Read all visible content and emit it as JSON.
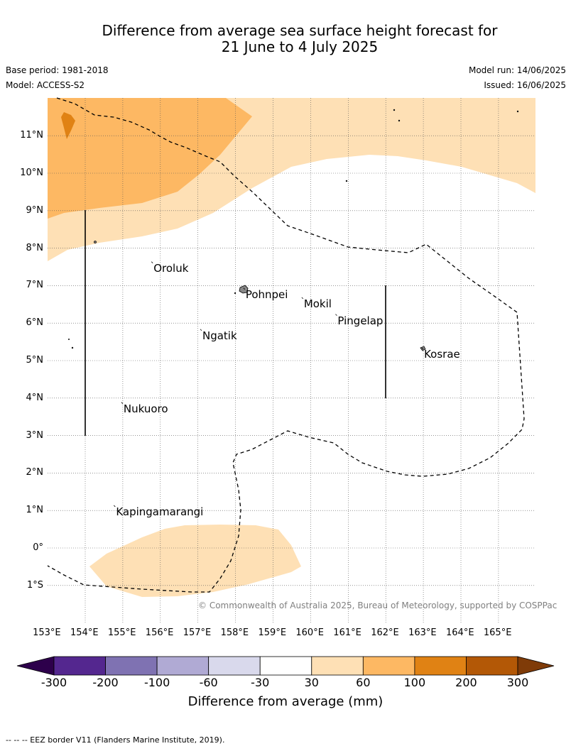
{
  "title_line1": "Difference from average sea surface height forecast for",
  "title_line2": "21 June to 4 July 2025",
  "base_period": "Base period: 1981-2018",
  "model": "Model: ACCESS-S2",
  "model_run": "Model run: 14/06/2025",
  "issued": "Issued: 16/06/2025",
  "copyright": "© Commonwealth of Australia 2025, Bureau of Meteorology, supported by COSPPac",
  "lat_labels": [
    "11°N",
    "10°N",
    "9°N",
    "8°N",
    "7°N",
    "6°N",
    "5°N",
    "4°N",
    "3°N",
    "2°N",
    "1°N",
    "0°",
    "1°S"
  ],
  "lon_labels": [
    "153°E",
    "154°E",
    "155°E",
    "156°E",
    "157°E",
    "158°E",
    "159°E",
    "160°E",
    "161°E",
    "162°E",
    "163°E",
    "164°E",
    "165°E"
  ],
  "places": [
    {
      "name": "Oroluk",
      "lon": 155.8,
      "lat": 7.6
    },
    {
      "name": "Pohnpei",
      "lon": 158.25,
      "lat": 6.9
    },
    {
      "name": "Mokil",
      "lon": 159.8,
      "lat": 6.65
    },
    {
      "name": "Pingelap",
      "lon": 160.7,
      "lat": 6.2
    },
    {
      "name": "Ngatik",
      "lon": 157.1,
      "lat": 5.8
    },
    {
      "name": "Kosrae",
      "lon": 163.0,
      "lat": 5.3
    },
    {
      "name": "Nukuoro",
      "lon": 155.0,
      "lat": 3.85
    },
    {
      "name": "Kapingamarangi",
      "lon": 154.8,
      "lat": 1.1
    }
  ],
  "colorbar": {
    "colors": [
      "#54278f",
      "#7f72b2",
      "#b0aad4",
      "#d9d9ec",
      "#ffffff",
      "#fee0b5",
      "#fdb863",
      "#e08214",
      "#b35806"
    ],
    "end_low": "#2d004b",
    "end_high": "#7f3b08",
    "labels": [
      "-300",
      "-200",
      "-100",
      "-60",
      "-30",
      "30",
      "60",
      "100",
      "200",
      "300"
    ],
    "title": "Difference from average (mm)"
  },
  "footer": "--  --  -- EEZ border V11 (Flanders Marine Institute, 2019)."
}
